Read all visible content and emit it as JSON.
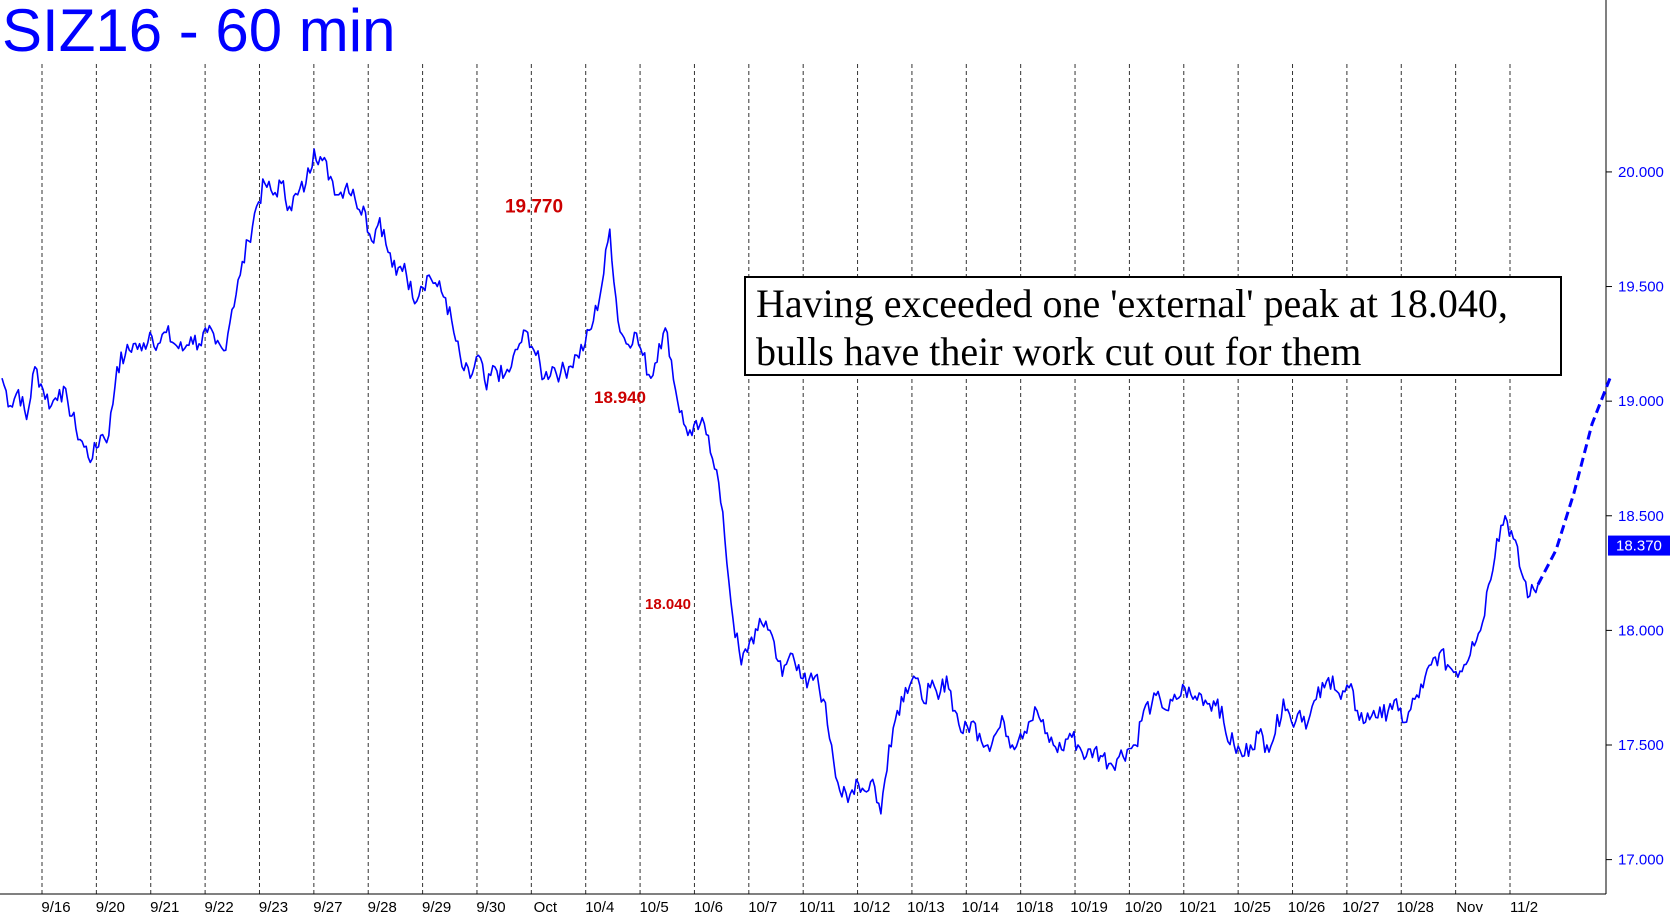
{
  "title": "SIZ16 - 60 min",
  "annotation": {
    "line1": "Having exceeded one 'external' peak at 18.040,",
    "line2": "bulls have their work cut out for them"
  },
  "colors": {
    "price": "#0000ff",
    "peak_label": "#cc0000",
    "grid": "#333333",
    "axis_text": "#0000ff",
    "last_price_bg": "#0000ff"
  },
  "chart_data": {
    "type": "line",
    "title": "SIZ16 - 60 min",
    "ylim": [
      16.85,
      20.75
    ],
    "yticks": [
      17.0,
      17.5,
      18.0,
      18.5,
      19.0,
      19.5,
      20.0
    ],
    "ytick_labels": [
      "17.000",
      "17.500",
      "18.000",
      "18.500",
      "19.000",
      "19.500",
      "20.000"
    ],
    "x_session_labels": [
      "9/16",
      "9/20",
      "9/21",
      "9/22",
      "9/23",
      "9/27",
      "9/28",
      "9/29",
      "9/30",
      "Oct",
      "10/4",
      "10/5",
      "10/6",
      "10/7",
      "10/11",
      "10/12",
      "10/13",
      "10/14",
      "10/18",
      "10/19",
      "10/20",
      "10/21",
      "10/25",
      "10/26",
      "10/27",
      "10/28",
      "Nov",
      "11/2"
    ],
    "last_price": "18.370",
    "series": [
      {
        "values": [
          19.1,
          18.98,
          19.05,
          18.92,
          19.15,
          19.05,
          18.98,
          19.05,
          19.0,
          18.88,
          18.8,
          18.75,
          18.85,
          18.85,
          19.15,
          19.2,
          19.25,
          19.22,
          19.3,
          19.25,
          19.3,
          19.25,
          19.22,
          19.28,
          19.25,
          19.3,
          19.25,
          19.22,
          19.4,
          19.55,
          19.7,
          19.85,
          19.95,
          19.9,
          19.95,
          19.85,
          19.9,
          19.95,
          20.1,
          20.05,
          19.98,
          19.9,
          19.95,
          19.88,
          19.85,
          19.7,
          19.8,
          19.65,
          19.55,
          19.6,
          19.45,
          19.5,
          19.55,
          19.5,
          19.45,
          19.3,
          19.15,
          19.1,
          19.2,
          19.05,
          19.15,
          19.1,
          19.15,
          19.25,
          19.3,
          19.2,
          19.1,
          19.15,
          19.12,
          19.15,
          19.2,
          19.25,
          19.35,
          19.5,
          19.75,
          19.35,
          19.25,
          19.3,
          19.2,
          19.1,
          19.25,
          19.3,
          19.05,
          18.9,
          18.85,
          18.9,
          18.85,
          18.7,
          18.4,
          18.05,
          17.85,
          17.95,
          18.0,
          18.04,
          17.95,
          17.8,
          17.9,
          17.85,
          17.75,
          17.8,
          17.7,
          17.5,
          17.3,
          17.25,
          17.35,
          17.3,
          17.35,
          17.2,
          17.5,
          17.65,
          17.75,
          17.8,
          17.7,
          17.75,
          17.7,
          17.8,
          17.65,
          17.55,
          17.6,
          17.55,
          17.5,
          17.55,
          17.6,
          17.5,
          17.55,
          17.6,
          17.65,
          17.55,
          17.5,
          17.48,
          17.55,
          17.5,
          17.45,
          17.48,
          17.45,
          17.42,
          17.45,
          17.48,
          17.5,
          17.65,
          17.68,
          17.7,
          17.65,
          17.7,
          17.75,
          17.7,
          17.72,
          17.68,
          17.7,
          17.55,
          17.5,
          17.45,
          17.5,
          17.55,
          17.5,
          17.55,
          17.7,
          17.6,
          17.65,
          17.6,
          17.7,
          17.75,
          17.8,
          17.7,
          17.75,
          17.65,
          17.6,
          17.65,
          17.62,
          17.68,
          17.65,
          17.6,
          17.7,
          17.75,
          17.85,
          17.9,
          17.85,
          17.82,
          17.85,
          17.95,
          18.0,
          18.2,
          18.4,
          18.5,
          18.4,
          18.25,
          18.15,
          18.2
        ]
      }
    ],
    "projection": {
      "values": [
        18.2,
        18.35,
        18.6,
        18.9,
        19.1
      ]
    },
    "peak_annotations": [
      {
        "label": "19.770",
        "value": 19.77
      },
      {
        "label": "18.940",
        "value": 18.94
      },
      {
        "label": "18.040",
        "value": 18.04
      }
    ]
  }
}
